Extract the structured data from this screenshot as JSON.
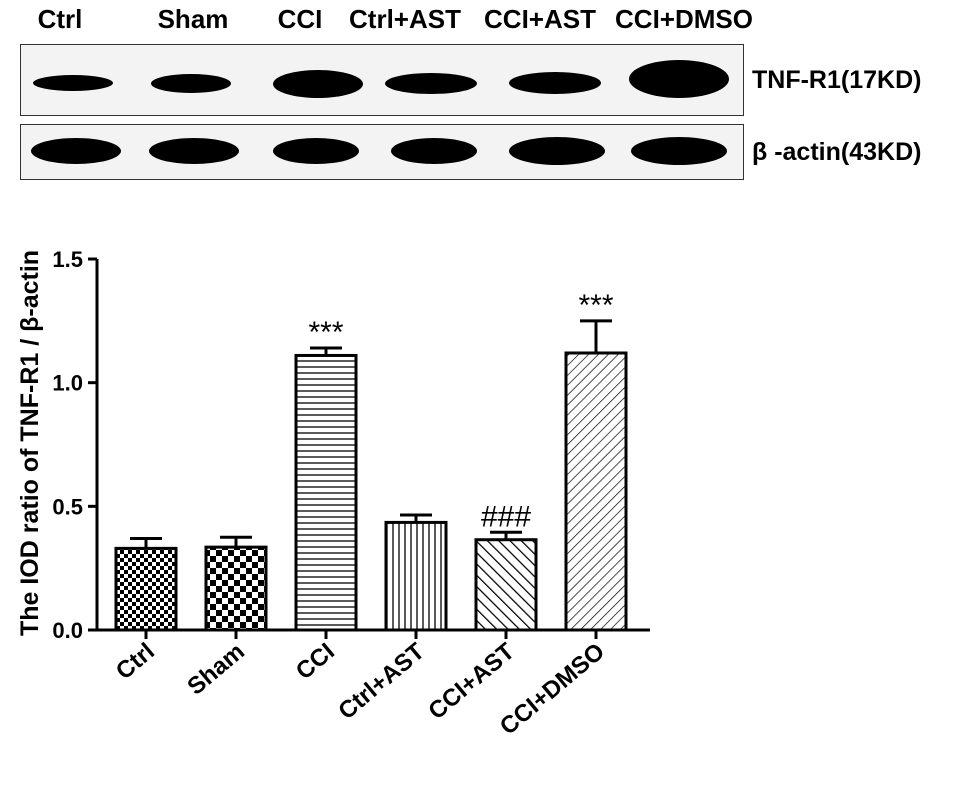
{
  "blot": {
    "lanes": [
      "Ctrl",
      "Sham",
      "CCI",
      "Ctrl+AST",
      "CCI+AST",
      "CCI+DMSO"
    ],
    "tnf_label": "TNF-R1(17KD)",
    "actin_label": "β -actin(43KD)"
  },
  "chart_data": {
    "type": "bar",
    "categories": [
      "Ctrl",
      "Sham",
      "CCI",
      "Ctrl+AST",
      "CCI+AST",
      "CCI+DMSO"
    ],
    "values": [
      0.33,
      0.335,
      1.11,
      0.435,
      0.365,
      1.12
    ],
    "errors": [
      0.04,
      0.04,
      0.03,
      0.03,
      0.03,
      0.13
    ],
    "patterns": [
      "checker-fine",
      "checker",
      "horizontal",
      "vertical",
      "diagonal",
      "diagonal-fine"
    ],
    "annotations": [
      "",
      "",
      "***",
      "",
      "###",
      "***"
    ],
    "ylabel": "The IOD ratio of TNF-R1 / β-actin",
    "xlabel": "",
    "ylim": [
      0,
      1.5
    ],
    "yticks": [
      "0.0",
      "0.5",
      "1.0",
      "1.5"
    ],
    "grid": false
  }
}
